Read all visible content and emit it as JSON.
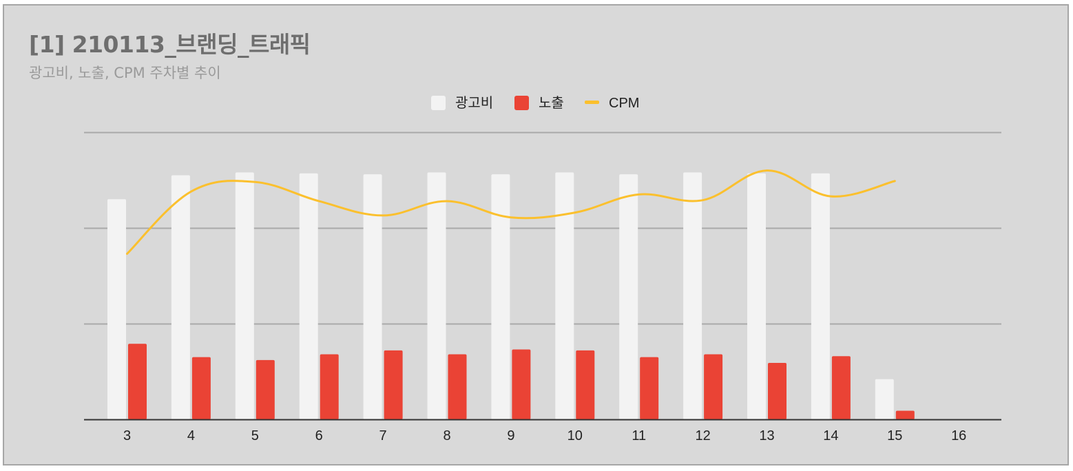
{
  "panel": {
    "title": "[1] 210113_브랜딩_트래픽",
    "subtitle": "광고비, 노출, CPM 주차별 추이"
  },
  "chart_data": {
    "type": "bar",
    "categories": [
      "3",
      "4",
      "5",
      "6",
      "7",
      "8",
      "9",
      "10",
      "11",
      "12",
      "13",
      "14",
      "15",
      "16"
    ],
    "series": [
      {
        "name": "광고비",
        "kind": "bar",
        "color": "#f3f3f3",
        "values": [
          230,
          255,
          258,
          257,
          256,
          258,
          256,
          258,
          256,
          258,
          257,
          257,
          42,
          null
        ]
      },
      {
        "name": "노출",
        "kind": "bar",
        "color": "#ea4335",
        "values": [
          79,
          65,
          62,
          68,
          72,
          68,
          73,
          72,
          65,
          68,
          59,
          66,
          9,
          null
        ]
      },
      {
        "name": "CPM",
        "kind": "line",
        "color": "#fbc02d",
        "values": [
          173,
          238,
          248,
          228,
          213,
          228,
          211,
          216,
          235,
          229,
          260,
          233,
          249,
          null
        ]
      }
    ],
    "ylim": [
      0,
      300
    ],
    "gridlines": [
      100,
      200,
      300
    ],
    "grid": true,
    "legend_position": "top-center",
    "xlabel": "",
    "ylabel": ""
  }
}
